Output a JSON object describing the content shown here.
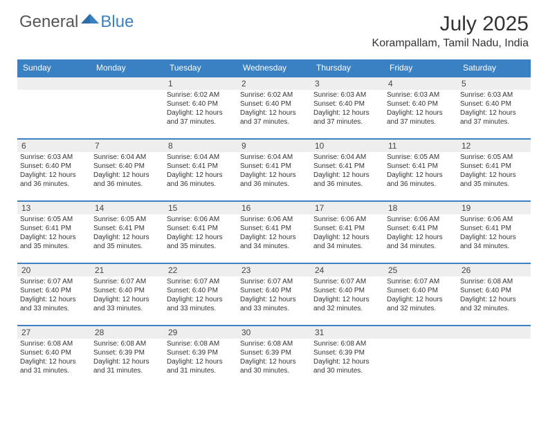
{
  "logo": {
    "general": "General",
    "blue": "Blue"
  },
  "title": "July 2025",
  "location": "Korampallam, Tamil Nadu, India",
  "colors": {
    "header_bg": "#3a81c4",
    "header_text": "#ffffff",
    "rule": "#3a81c4",
    "daynum_bg": "#eeeeee",
    "text": "#333333"
  },
  "day_headers": [
    "Sunday",
    "Monday",
    "Tuesday",
    "Wednesday",
    "Thursday",
    "Friday",
    "Saturday"
  ],
  "first_weekday": 2,
  "days": [
    {
      "n": 1,
      "sunrise": "6:02 AM",
      "sunset": "6:40 PM",
      "daylight": "12 hours and 37 minutes."
    },
    {
      "n": 2,
      "sunrise": "6:02 AM",
      "sunset": "6:40 PM",
      "daylight": "12 hours and 37 minutes."
    },
    {
      "n": 3,
      "sunrise": "6:03 AM",
      "sunset": "6:40 PM",
      "daylight": "12 hours and 37 minutes."
    },
    {
      "n": 4,
      "sunrise": "6:03 AM",
      "sunset": "6:40 PM",
      "daylight": "12 hours and 37 minutes."
    },
    {
      "n": 5,
      "sunrise": "6:03 AM",
      "sunset": "6:40 PM",
      "daylight": "12 hours and 37 minutes."
    },
    {
      "n": 6,
      "sunrise": "6:03 AM",
      "sunset": "6:40 PM",
      "daylight": "12 hours and 36 minutes."
    },
    {
      "n": 7,
      "sunrise": "6:04 AM",
      "sunset": "6:40 PM",
      "daylight": "12 hours and 36 minutes."
    },
    {
      "n": 8,
      "sunrise": "6:04 AM",
      "sunset": "6:41 PM",
      "daylight": "12 hours and 36 minutes."
    },
    {
      "n": 9,
      "sunrise": "6:04 AM",
      "sunset": "6:41 PM",
      "daylight": "12 hours and 36 minutes."
    },
    {
      "n": 10,
      "sunrise": "6:04 AM",
      "sunset": "6:41 PM",
      "daylight": "12 hours and 36 minutes."
    },
    {
      "n": 11,
      "sunrise": "6:05 AM",
      "sunset": "6:41 PM",
      "daylight": "12 hours and 36 minutes."
    },
    {
      "n": 12,
      "sunrise": "6:05 AM",
      "sunset": "6:41 PM",
      "daylight": "12 hours and 35 minutes."
    },
    {
      "n": 13,
      "sunrise": "6:05 AM",
      "sunset": "6:41 PM",
      "daylight": "12 hours and 35 minutes."
    },
    {
      "n": 14,
      "sunrise": "6:05 AM",
      "sunset": "6:41 PM",
      "daylight": "12 hours and 35 minutes."
    },
    {
      "n": 15,
      "sunrise": "6:06 AM",
      "sunset": "6:41 PM",
      "daylight": "12 hours and 35 minutes."
    },
    {
      "n": 16,
      "sunrise": "6:06 AM",
      "sunset": "6:41 PM",
      "daylight": "12 hours and 34 minutes."
    },
    {
      "n": 17,
      "sunrise": "6:06 AM",
      "sunset": "6:41 PM",
      "daylight": "12 hours and 34 minutes."
    },
    {
      "n": 18,
      "sunrise": "6:06 AM",
      "sunset": "6:41 PM",
      "daylight": "12 hours and 34 minutes."
    },
    {
      "n": 19,
      "sunrise": "6:06 AM",
      "sunset": "6:41 PM",
      "daylight": "12 hours and 34 minutes."
    },
    {
      "n": 20,
      "sunrise": "6:07 AM",
      "sunset": "6:40 PM",
      "daylight": "12 hours and 33 minutes."
    },
    {
      "n": 21,
      "sunrise": "6:07 AM",
      "sunset": "6:40 PM",
      "daylight": "12 hours and 33 minutes."
    },
    {
      "n": 22,
      "sunrise": "6:07 AM",
      "sunset": "6:40 PM",
      "daylight": "12 hours and 33 minutes."
    },
    {
      "n": 23,
      "sunrise": "6:07 AM",
      "sunset": "6:40 PM",
      "daylight": "12 hours and 33 minutes."
    },
    {
      "n": 24,
      "sunrise": "6:07 AM",
      "sunset": "6:40 PM",
      "daylight": "12 hours and 32 minutes."
    },
    {
      "n": 25,
      "sunrise": "6:07 AM",
      "sunset": "6:40 PM",
      "daylight": "12 hours and 32 minutes."
    },
    {
      "n": 26,
      "sunrise": "6:08 AM",
      "sunset": "6:40 PM",
      "daylight": "12 hours and 32 minutes."
    },
    {
      "n": 27,
      "sunrise": "6:08 AM",
      "sunset": "6:40 PM",
      "daylight": "12 hours and 31 minutes."
    },
    {
      "n": 28,
      "sunrise": "6:08 AM",
      "sunset": "6:39 PM",
      "daylight": "12 hours and 31 minutes."
    },
    {
      "n": 29,
      "sunrise": "6:08 AM",
      "sunset": "6:39 PM",
      "daylight": "12 hours and 31 minutes."
    },
    {
      "n": 30,
      "sunrise": "6:08 AM",
      "sunset": "6:39 PM",
      "daylight": "12 hours and 30 minutes."
    },
    {
      "n": 31,
      "sunrise": "6:08 AM",
      "sunset": "6:39 PM",
      "daylight": "12 hours and 30 minutes."
    }
  ],
  "labels": {
    "sunrise": "Sunrise:",
    "sunset": "Sunset:",
    "daylight": "Daylight:"
  }
}
